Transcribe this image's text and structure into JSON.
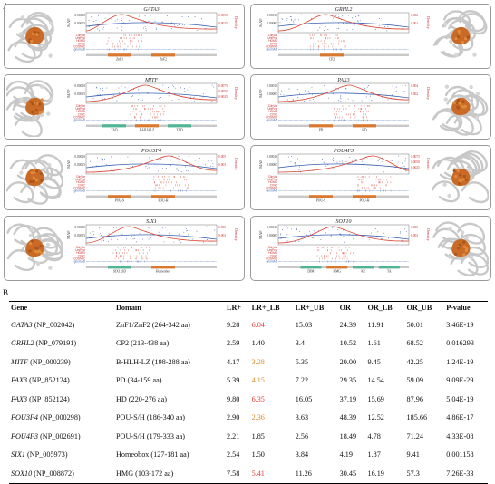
{
  "panel_a_label": "A",
  "panel_b_label": "B",
  "common_labels": {
    "maf_axis": "MAF",
    "density_axis": "Density",
    "tracks": [
      "ClinVar",
      "UniProt",
      "HGMD",
      "CIViC",
      "COSMIC",
      "gnomAD"
    ],
    "gnomad_label": "gnomAD"
  },
  "genes": [
    {
      "name": "GATA3",
      "maf_ticks": [
        "0.00010",
        "0.00005"
      ],
      "density_ticks": [
        "0.0050",
        "0.0025"
      ],
      "domains": [
        "ZnF1",
        "ZnF2"
      ],
      "domain_color": "#d9782f"
    },
    {
      "name": "GRHL2",
      "maf_ticks": [
        "0.00010",
        "0.00005"
      ],
      "density_ticks": [
        "0.002",
        "0.001"
      ],
      "domains": [
        "CP2"
      ],
      "domain_color": "#d9782f"
    },
    {
      "name": "MITF",
      "maf_ticks": [
        "0.00010",
        "0.00005"
      ],
      "density_ticks": [
        "0.0075",
        "0.0050",
        "0.0025"
      ],
      "domains": [
        "TAD",
        "B-HLH-LZ",
        "TAD"
      ],
      "domain_color": "#4fb594"
    },
    {
      "name": "PAX3",
      "maf_ticks": [
        "0.00010",
        "0.00005"
      ],
      "density_ticks": [
        "0.004",
        "0.002"
      ],
      "domains": [
        "PD",
        "HD"
      ],
      "domain_color": "#d9782f"
    },
    {
      "name": "POU3F4",
      "maf_ticks": [
        "0.00010",
        "0.00005"
      ],
      "density_ticks": [
        "0.005",
        "0.003"
      ],
      "domains": [
        "POU-S",
        "POU-H"
      ],
      "domain_color": "#d9782f"
    },
    {
      "name": "POU4F3",
      "maf_ticks": [
        "0.00010",
        "0.00005"
      ],
      "density_ticks": [
        "0.0075",
        "0.0050",
        "0.0025"
      ],
      "domains": [
        "POU-S",
        "POU-H"
      ],
      "domain_color": "#d9782f"
    },
    {
      "name": "SIX1",
      "maf_ticks": [
        "0.00010",
        "0.00005"
      ],
      "density_ticks": [
        "0.005",
        "0.003"
      ],
      "domains": [
        "SIX1_SD",
        "Homeobox"
      ],
      "domain_color": "#4fb594"
    },
    {
      "name": "SOX10",
      "maf_ticks": [
        "0.00010",
        "0.00005"
      ],
      "density_ticks": [
        "0.005",
        "0.003"
      ],
      "domains": [
        "DIM",
        "HMG",
        "K2",
        "TA"
      ],
      "domain_color": "#4fb594"
    }
  ],
  "table": {
    "headers": [
      "Gene",
      "Domain",
      "LR+",
      "LR+_LB",
      "LR+_UB",
      "OR",
      "OR_LB",
      "OR_UB",
      "P-value"
    ],
    "rows": [
      {
        "gene": "GATA3",
        "acc": "(NP_002042)",
        "domain": "ZnF1/ZnF2 (264-342 aa)",
        "lr": "9.28",
        "lr_lb": "6.04",
        "lr_lb_color": "#e03c3c",
        "lr_ub": "15.03",
        "or": "24.39",
        "or_lb": "11.91",
        "or_ub": "50.01",
        "p": "3.46E-19"
      },
      {
        "gene": "GRHL2",
        "acc": "(NP_079191)",
        "domain": "CP2 (213-438 aa)",
        "lr": "2.59",
        "lr_lb": "1.40",
        "lr_lb_color": "#111111",
        "lr_ub": "3.4",
        "or": "10.52",
        "or_lb": "1.61",
        "or_ub": "68.52",
        "p": "0.016293"
      },
      {
        "gene": "MITF",
        "acc": "(NP_000239)",
        "domain": "B-HLH-LZ (198-288 aa)",
        "lr": "4.17",
        "lr_lb": "3.28",
        "lr_lb_color": "#e08a2e",
        "lr_ub": "5.35",
        "or": "20.00",
        "or_lb": "9.45",
        "or_ub": "42.25",
        "p": "1.24E-19"
      },
      {
        "gene": "PAX3",
        "acc": "(NP_852124)",
        "domain": "PD (34-159 aa)",
        "lr": "5.39",
        "lr_lb": "4.15",
        "lr_lb_color": "#e08a2e",
        "lr_ub": "7.22",
        "or": "29.35",
        "or_lb": "14.54",
        "or_ub": "59.09",
        "p": "9.09E-29"
      },
      {
        "gene": "PAX3",
        "acc": "(NP_852124)",
        "domain": "HD (220-276 aa)",
        "lr": "9.80",
        "lr_lb": "6.35",
        "lr_lb_color": "#e03c3c",
        "lr_ub": "16.05",
        "or": "37.19",
        "or_lb": "15.69",
        "or_ub": "87.96",
        "p": "5.04E-19"
      },
      {
        "gene": "POU3F4",
        "acc": "(NP_000298)",
        "domain": "POU-S/H (186-340 aa)",
        "lr": "2.90",
        "lr_lb": "2.36",
        "lr_lb_color": "#e08a2e",
        "lr_ub": "3.63",
        "or": "48.39",
        "or_lb": "12.52",
        "or_ub": "185.66",
        "p": "4.86E-17"
      },
      {
        "gene": "POU4F3",
        "acc": "(NP_002691)",
        "domain": "POU-S/H (179-333 aa)",
        "lr": "2.21",
        "lr_lb": "1.85",
        "lr_lb_color": "#111111",
        "lr_ub": "2.56",
        "or": "18.49",
        "or_lb": "4.78",
        "or_ub": "71.24",
        "p": "4.33E-08"
      },
      {
        "gene": "SIX1",
        "acc": "(NP_005973)",
        "domain": "Homeobox (127-181 aa)",
        "lr": "2.54",
        "lr_lb": "1.50",
        "lr_lb_color": "#111111",
        "lr_ub": "3.84",
        "or": "4.19",
        "or_lb": "1.87",
        "or_ub": "9.41",
        "p": "0.001158"
      },
      {
        "gene": "SOX10",
        "acc": "(NP_008872)",
        "domain": "HMG (103-172 aa)",
        "lr": "7.58",
        "lr_lb": "5.41",
        "lr_lb_color": "#e03c3c",
        "lr_ub": "11.26",
        "or": "30.45",
        "or_lb": "16.19",
        "or_ub": "57.3",
        "p": "7.26E-33"
      }
    ]
  }
}
